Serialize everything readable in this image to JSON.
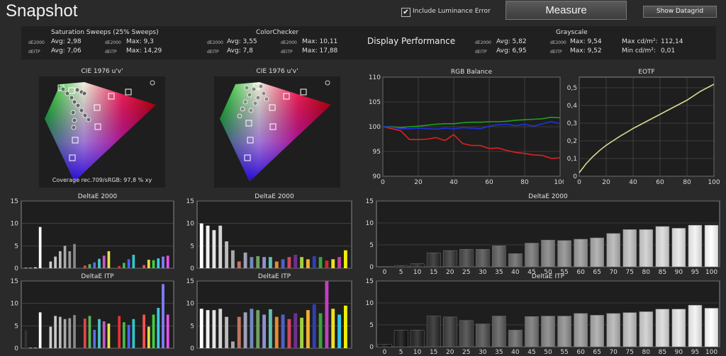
{
  "header": {
    "title": "Snapshot",
    "include_luminance_label": "Include Luminance Error",
    "include_luminance_checked": true,
    "measure_label": "Measure",
    "show_datagrid_label": "Show Datagrid"
  },
  "stats": {
    "saturation": {
      "title": "Saturation Sweeps (25% Sweeps)",
      "de2000_label": "dE2000",
      "deitp_label": "dEITP",
      "de2000_avg": "Avg: 2,98",
      "de2000_max": "Max: 9,3",
      "deitp_avg": "Avg: 7,06",
      "deitp_max": "Max: 14,29"
    },
    "colorchecker": {
      "title": "ColorChecker",
      "de2000_label": "dE2000",
      "deitp_label": "dEITP",
      "de2000_avg": "Avg: 3,55",
      "de2000_max": "Max: 10,11",
      "deitp_avg": "Avg: 7,8",
      "deitp_max": "Max: 17,88",
      "de2000_label2": "dE2000",
      "deitp_label2": "dEITP"
    },
    "display_performance": "Display Performance",
    "grayscale": {
      "title": "Grayscale",
      "de2000_label": "dE2000",
      "deitp_label": "dEITP",
      "de2000_avg": "Avg: 5,82",
      "de2000_max": "Max: 9,54",
      "deitp_avg": "Avg: 6,95",
      "deitp_max": "Max: 9,52",
      "de2000_label2": "dE2000",
      "deitp_label2": "dEITP",
      "max_cd_label": "Max cd/m²:",
      "max_cd_value": "112,14",
      "min_cd_label": "Min cd/m²:",
      "min_cd_value": "0,01"
    }
  },
  "cie": {
    "left_title": "CIE 1976 u'v'",
    "right_title": "CIE 1976 u'v'",
    "coverage": "Coverage rec.709/sRGB:  97,8 % xy",
    "zoom_icon": "magnifier-icon"
  },
  "chart_data": [
    {
      "type": "line",
      "title": "RGB Balance",
      "x": [
        0,
        5,
        10,
        15,
        20,
        25,
        30,
        35,
        40,
        45,
        50,
        55,
        60,
        65,
        70,
        75,
        80,
        85,
        90,
        95,
        100
      ],
      "xticks": [
        "0",
        "20",
        "40",
        "60",
        "80",
        "100"
      ],
      "yticks": [
        "90",
        "95",
        "100",
        "105",
        "110"
      ],
      "ylim": [
        90,
        110
      ],
      "series": [
        {
          "color": "#e02020",
          "values": [
            100,
            99.6,
            99.2,
            97.4,
            97.4,
            97.5,
            97.8,
            97.2,
            98.4,
            96.6,
            96.2,
            96.2,
            95.6,
            95.7,
            95.2,
            94.8,
            94.6,
            94.3,
            94.2,
            93.6,
            93.7
          ]
        },
        {
          "color": "#20a020",
          "values": [
            100,
            100,
            99.8,
            100,
            100.1,
            100.3,
            100.5,
            100.6,
            100.6,
            100.8,
            100.9,
            100.9,
            101,
            101,
            101.1,
            101.3,
            101.4,
            101.5,
            101.6,
            101.9,
            101.8
          ]
        },
        {
          "color": "#2030e0",
          "values": [
            100,
            99.9,
            99.6,
            99.6,
            99.7,
            99.6,
            99.5,
            99.7,
            99.6,
            99.8,
            99.7,
            99.6,
            100.1,
            100.4,
            100.5,
            100.2,
            100.5,
            100.1,
            100.6,
            101.0,
            100.6
          ]
        }
      ]
    },
    {
      "type": "line",
      "title": "EOTF",
      "x": [
        0,
        5,
        10,
        15,
        20,
        25,
        30,
        40,
        50,
        60,
        70,
        80,
        90,
        100
      ],
      "xticks": [
        "0",
        "20",
        "40",
        "60",
        "80",
        "100"
      ],
      "yticks": [
        "0",
        "0,1",
        "0,2",
        "0,3",
        "0,4",
        "0,5"
      ],
      "ylim": [
        0,
        0.56
      ],
      "series": [
        {
          "color": "#d8d890",
          "values": [
            0.02,
            0.07,
            0.11,
            0.145,
            0.175,
            0.2,
            0.225,
            0.27,
            0.31,
            0.35,
            0.39,
            0.43,
            0.48,
            0.52
          ]
        }
      ]
    },
    {
      "type": "bar",
      "title": "DeltaE 2000",
      "panel": "saturation",
      "yticks": [
        "0",
        "5",
        "10",
        "15"
      ],
      "ylim": [
        0,
        15
      ],
      "groups": [
        {
          "values": [
            0.1,
            0.1,
            0.2,
            9.2
          ],
          "colors": [
            "#ffffff",
            "#ffffff",
            "#ffffff",
            "#ffffff"
          ]
        },
        {
          "values": [
            1.5,
            2.6,
            3.8,
            5.0,
            3.8,
            5.4
          ],
          "colors": [
            "#cfcfcf",
            "#c8c8c8",
            "#bcbcbc",
            "#aaaaaa",
            "#999999",
            "#888888"
          ]
        },
        {
          "values": [
            0.6,
            0.9,
            1.3,
            2.1,
            2.8,
            3.8
          ],
          "colors": [
            "#e04848",
            "#58b858",
            "#5a70e0",
            "#48c8c8",
            "#c858c8",
            "#e8e050"
          ]
        },
        {
          "values": [
            0.5,
            1.2,
            2.0,
            3.0
          ],
          "colors": [
            "#e83030",
            "#40c040",
            "#5060ff",
            "#30c8c8"
          ]
        },
        {
          "values": [
            0.7,
            1.9,
            1.8,
            2.2,
            2.6,
            2.8
          ],
          "colors": [
            "#ff5050",
            "#e0e040",
            "#40d040",
            "#40c8e0",
            "#8080ff",
            "#e850e8"
          ]
        }
      ]
    },
    {
      "type": "bar",
      "title": "DeltaE 2000",
      "panel": "colorchecker",
      "yticks": [
        "0",
        "5",
        "10",
        "15"
      ],
      "ylim": [
        0,
        15
      ],
      "values": [
        10.0,
        9.5,
        8.5,
        9.5,
        6.0,
        4.0,
        1.5,
        3.5,
        2.5,
        2.7,
        2.5,
        2.5,
        1.5,
        2.0,
        2.5,
        3.0,
        2.5,
        2.0,
        2.7,
        2.5,
        1.7,
        2.0,
        2.5,
        4.0
      ],
      "colors": [
        "#ffffff",
        "#f2f2f2",
        "#e4e4e4",
        "#d4d4d4",
        "#bcbcbc",
        "#a8a8a8",
        "#c07560",
        "#a0a0b8",
        "#7088c0",
        "#70a060",
        "#9090d0",
        "#60c0b0",
        "#e88a30",
        "#5060c8",
        "#d04860",
        "#703090",
        "#a0d040",
        "#f0b030",
        "#3040b0",
        "#40a040",
        "#c03030",
        "#f0e020",
        "#c040a0",
        "#f0f000"
      ]
    },
    {
      "type": "bar",
      "title": "DeltaE 2000",
      "panel": "grayscale",
      "categories": [
        "0",
        "5",
        "10",
        "15",
        "20",
        "25",
        "30",
        "35",
        "40",
        "45",
        "50",
        "55",
        "60",
        "65",
        "70",
        "75",
        "80",
        "85",
        "90",
        "95",
        "100"
      ],
      "values": [
        0.05,
        0.3,
        0.7,
        3.2,
        3.7,
        4.0,
        4.0,
        4.8,
        3.0,
        5.4,
        6.1,
        6.0,
        6.3,
        6.6,
        7.6,
        8.5,
        8.5,
        9.2,
        8.8,
        9.5,
        9.5
      ],
      "yticks": [
        "0",
        "5",
        "10",
        "15"
      ],
      "ylim": [
        0,
        15
      ]
    },
    {
      "type": "bar",
      "title": "DeltaE ITP",
      "panel": "saturation",
      "yticks": [
        "0",
        "5",
        "10",
        "15"
      ],
      "ylim": [
        0,
        15
      ],
      "groups": [
        {
          "values": [
            4.0,
            0.1,
            0.1,
            8.0
          ],
          "colors": [
            "#333333",
            "#ffffff",
            "#ffffff",
            "#ffffff"
          ]
        },
        {
          "values": [
            4.8,
            7.2,
            7.0,
            6.5,
            6.7,
            7.4
          ],
          "colors": [
            "#cfcfcf",
            "#c8c8c8",
            "#bcbcbc",
            "#aaaaaa",
            "#999999",
            "#888888"
          ]
        },
        {
          "values": [
            6.6,
            7.2,
            4.1,
            6.5,
            6.0,
            5.5
          ],
          "colors": [
            "#e04848",
            "#58b858",
            "#5a70e0",
            "#48c8c8",
            "#c858c8",
            "#e8e050"
          ]
        },
        {
          "values": [
            7.2,
            5.8,
            5.2,
            6.5
          ],
          "colors": [
            "#e83030",
            "#40c040",
            "#5060ff",
            "#30c8c8"
          ]
        },
        {
          "values": [
            7.5,
            4.8,
            7.5,
            9.0,
            14.3,
            7.5
          ],
          "colors": [
            "#ff5050",
            "#e0e040",
            "#40d040",
            "#40c8e0",
            "#8080ff",
            "#e850e8"
          ]
        }
      ]
    },
    {
      "type": "bar",
      "title": "DeltaE ITP",
      "panel": "colorchecker",
      "yticks": [
        "0",
        "5",
        "10",
        "15"
      ],
      "ylim": [
        0,
        15
      ],
      "values": [
        8.8,
        8.5,
        8.5,
        8.8,
        7.0,
        1.5,
        7.0,
        8.0,
        8.8,
        8.5,
        7.5,
        8.7,
        7.0,
        7.5,
        6.5,
        7.8,
        6.8,
        8.5,
        9.8,
        7.8,
        15.0,
        8.8,
        7.5,
        9.5
      ],
      "colors": [
        "#ffffff",
        "#f2f2f2",
        "#e4e4e4",
        "#d4d4d4",
        "#bcbcbc",
        "#a8a8a8",
        "#c07560",
        "#a0a0b8",
        "#7088c0",
        "#70a060",
        "#9090d0",
        "#60c0b0",
        "#e88a30",
        "#5060c8",
        "#d04860",
        "#703090",
        "#a0d040",
        "#f0b030",
        "#3040b0",
        "#40a040",
        "#c040c0",
        "#f0e020",
        "#30c8e8",
        "#f0f000"
      ]
    },
    {
      "type": "bar",
      "title": "DeltaE ITP",
      "panel": "grayscale",
      "categories": [
        "0",
        "5",
        "10",
        "15",
        "20",
        "25",
        "30",
        "35",
        "40",
        "45",
        "50",
        "55",
        "60",
        "65",
        "70",
        "75",
        "80",
        "85",
        "90",
        "95",
        "100"
      ],
      "values": [
        0.6,
        3.8,
        3.8,
        7.0,
        6.8,
        6.0,
        5.2,
        7.0,
        3.8,
        6.9,
        7.0,
        7.0,
        7.6,
        7.2,
        7.6,
        7.8,
        8.0,
        8.6,
        8.6,
        9.5,
        8.8
      ],
      "yticks": [
        "0",
        "5",
        "10",
        "15"
      ],
      "ylim": [
        0,
        15
      ]
    }
  ]
}
